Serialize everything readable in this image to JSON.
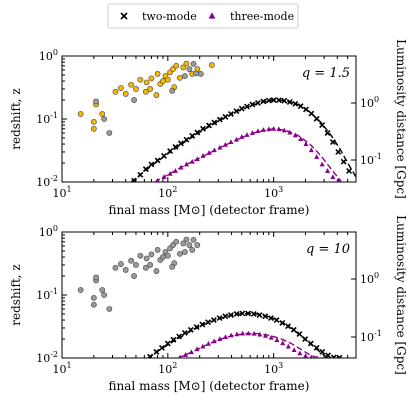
{
  "legend": {
    "items": [
      {
        "label": "two-mode",
        "marker": "x",
        "color": "#000000"
      },
      {
        "label": "three-mode",
        "marker": "triangle",
        "color": "#8b008b"
      }
    ]
  },
  "colors": {
    "gold": "#f5b800",
    "gray": "#9a9a9a",
    "two_mode": "#000000",
    "three_mode": "#8b008b"
  },
  "chart_data": [
    {
      "type": "scatter",
      "annotation": "q = 1.5",
      "xlabel": "final mass [M⊙] (detector frame)",
      "ylabel": "redshift, z",
      "y2label": "Luminosity distance [Gpc]",
      "xscale": "log",
      "yscale": "log",
      "xlim": [
        10,
        6000
      ],
      "ylim": [
        0.01,
        1.0
      ],
      "xticks": [
        "10",
        "100",
        "1000"
      ],
      "yticks": [
        "0.01",
        "0.1",
        "1"
      ],
      "y2ticks": [
        "0.1",
        "1"
      ],
      "catalog_events": [
        {
          "m": 63,
          "z": 0.38,
          "color": "gold"
        },
        {
          "m": 70,
          "z": 0.44,
          "color": "gold"
        },
        {
          "m": 80,
          "z": 0.52,
          "color": "gold"
        },
        {
          "m": 95,
          "z": 0.48,
          "color": "gold"
        },
        {
          "m": 105,
          "z": 0.55,
          "color": "gold"
        },
        {
          "m": 112,
          "z": 0.62,
          "color": "gold"
        },
        {
          "m": 120,
          "z": 0.7,
          "color": "gold"
        },
        {
          "m": 140,
          "z": 0.66,
          "color": "gold"
        },
        {
          "m": 150,
          "z": 0.76,
          "color": "gold"
        },
        {
          "m": 170,
          "z": 0.52,
          "color": "gold"
        },
        {
          "m": 190,
          "z": 0.62,
          "color": "gold"
        },
        {
          "m": 260,
          "z": 0.72,
          "color": "gold"
        },
        {
          "m": 24,
          "z": 0.12,
          "color": "gold"
        },
        {
          "m": 20,
          "z": 0.09,
          "color": "gold"
        },
        {
          "m": 15,
          "z": 0.12,
          "color": "gold"
        },
        {
          "m": 32,
          "z": 0.27,
          "color": "gold"
        },
        {
          "m": 36,
          "z": 0.31,
          "color": "gold"
        },
        {
          "m": 40,
          "z": 0.25,
          "color": "gold"
        },
        {
          "m": 45,
          "z": 0.35,
          "color": "gold"
        },
        {
          "m": 50,
          "z": 0.3,
          "color": "gold"
        },
        {
          "m": 55,
          "z": 0.42,
          "color": "gold"
        },
        {
          "m": 62,
          "z": 0.27,
          "color": "gold"
        },
        {
          "m": 68,
          "z": 0.3,
          "color": "gold"
        },
        {
          "m": 85,
          "z": 0.36,
          "color": "gold"
        },
        {
          "m": 90,
          "z": 0.4,
          "color": "gold"
        },
        {
          "m": 100,
          "z": 0.42,
          "color": "gold"
        },
        {
          "m": 78,
          "z": 0.24,
          "color": "gold"
        },
        {
          "m": 115,
          "z": 0.32,
          "color": "gold"
        },
        {
          "m": 130,
          "z": 0.45,
          "color": "gold"
        },
        {
          "m": 21,
          "z": 0.17,
          "color": "gold"
        },
        {
          "m": 20,
          "z": 0.07,
          "color": "gold"
        },
        {
          "m": 21,
          "z": 0.19,
          "color": "gray"
        },
        {
          "m": 25,
          "z": 0.1,
          "color": "gray"
        },
        {
          "m": 28,
          "z": 0.06,
          "color": "gray"
        },
        {
          "m": 48,
          "z": 0.2,
          "color": "gray"
        },
        {
          "m": 110,
          "z": 0.28,
          "color": "gray"
        },
        {
          "m": 145,
          "z": 0.48,
          "color": "gray"
        },
        {
          "m": 160,
          "z": 0.62,
          "color": "gray"
        },
        {
          "m": 175,
          "z": 0.75,
          "color": "gray"
        },
        {
          "m": 185,
          "z": 0.53,
          "color": "gray"
        },
        {
          "m": 205,
          "z": 0.52,
          "color": "gray"
        }
      ],
      "two_mode": {
        "x": [
          48,
          55,
          62,
          70,
          80,
          92,
          105,
          118,
          133,
          150,
          170,
          190,
          215,
          245,
          275,
          310,
          350,
          395,
          445,
          500,
          560,
          630,
          710,
          800,
          900,
          1000,
          1120,
          1260,
          1420,
          1600,
          1800,
          2020,
          2270,
          2550,
          2870,
          3230,
          3630,
          4080,
          4590,
          5160
        ],
        "y": [
          0.0105,
          0.013,
          0.016,
          0.019,
          0.022,
          0.026,
          0.031,
          0.036,
          0.041,
          0.047,
          0.054,
          0.061,
          0.07,
          0.079,
          0.088,
          0.098,
          0.108,
          0.12,
          0.133,
          0.146,
          0.158,
          0.17,
          0.18,
          0.19,
          0.196,
          0.2,
          0.199,
          0.195,
          0.186,
          0.174,
          0.16,
          0.142,
          0.122,
          0.101,
          0.08,
          0.06,
          0.043,
          0.03,
          0.021,
          0.015
        ]
      },
      "three_mode": {
        "x": [
          80,
          92,
          105,
          118,
          133,
          150,
          170,
          190,
          215,
          245,
          275,
          310,
          350,
          395,
          445,
          500,
          560,
          630,
          710,
          800,
          900,
          1000,
          1120,
          1260,
          1420,
          1600,
          1800,
          2020,
          2270,
          2550,
          2870,
          3230,
          3630,
          4080
        ],
        "y": [
          0.0105,
          0.012,
          0.0135,
          0.015,
          0.017,
          0.019,
          0.021,
          0.023,
          0.026,
          0.029,
          0.032,
          0.035,
          0.039,
          0.043,
          0.047,
          0.052,
          0.056,
          0.06,
          0.064,
          0.067,
          0.069,
          0.07,
          0.069,
          0.066,
          0.061,
          0.055,
          0.048,
          0.04,
          0.032,
          0.025,
          0.019,
          0.015,
          0.012,
          0.0105
        ]
      },
      "two_mode_fit": {
        "x": [
          45,
          70,
          100,
          150,
          220,
          320,
          450,
          600,
          800,
          1000,
          1300,
          1700,
          2200,
          2800,
          3500,
          4300,
          5200,
          6000
        ],
        "y": [
          0.01,
          0.018,
          0.028,
          0.045,
          0.068,
          0.098,
          0.132,
          0.162,
          0.188,
          0.2,
          0.195,
          0.17,
          0.13,
          0.088,
          0.055,
          0.032,
          0.018,
          0.012
        ]
      },
      "three_mode_fit": {
        "x": [
          75,
          100,
          150,
          220,
          320,
          450,
          600,
          800,
          1000,
          1300,
          1700,
          2200,
          2800,
          3500,
          4200,
          5000
        ],
        "y": [
          0.01,
          0.013,
          0.019,
          0.026,
          0.036,
          0.047,
          0.058,
          0.066,
          0.07,
          0.066,
          0.055,
          0.04,
          0.026,
          0.016,
          0.011,
          0.007
        ]
      }
    },
    {
      "type": "scatter",
      "annotation": "q = 10",
      "xlabel": "final mass [M⊙] (detector frame)",
      "ylabel": "redshift, z",
      "y2label": "Luminosity distance [Gpc]",
      "xscale": "log",
      "yscale": "log",
      "xlim": [
        10,
        6000
      ],
      "ylim": [
        0.01,
        1.0
      ],
      "xticks": [
        "10",
        "100",
        "1000"
      ],
      "yticks": [
        "0.01",
        "0.1",
        "1"
      ],
      "y2ticks": [
        "0.1",
        "1"
      ],
      "catalog_events": [
        {
          "m": 63,
          "z": 0.38,
          "color": "gray"
        },
        {
          "m": 70,
          "z": 0.44,
          "color": "gray"
        },
        {
          "m": 80,
          "z": 0.52,
          "color": "gray"
        },
        {
          "m": 95,
          "z": 0.48,
          "color": "gray"
        },
        {
          "m": 105,
          "z": 0.55,
          "color": "gray"
        },
        {
          "m": 112,
          "z": 0.62,
          "color": "gray"
        },
        {
          "m": 120,
          "z": 0.7,
          "color": "gray"
        },
        {
          "m": 140,
          "z": 0.66,
          "color": "gray"
        },
        {
          "m": 150,
          "z": 0.76,
          "color": "gray"
        },
        {
          "m": 170,
          "z": 0.52,
          "color": "gray"
        },
        {
          "m": 190,
          "z": 0.62,
          "color": "gray"
        },
        {
          "m": 24,
          "z": 0.12,
          "color": "gray"
        },
        {
          "m": 20,
          "z": 0.09,
          "color": "gray"
        },
        {
          "m": 15,
          "z": 0.12,
          "color": "gray"
        },
        {
          "m": 32,
          "z": 0.27,
          "color": "gray"
        },
        {
          "m": 36,
          "z": 0.31,
          "color": "gray"
        },
        {
          "m": 40,
          "z": 0.25,
          "color": "gray"
        },
        {
          "m": 45,
          "z": 0.35,
          "color": "gray"
        },
        {
          "m": 50,
          "z": 0.3,
          "color": "gray"
        },
        {
          "m": 55,
          "z": 0.42,
          "color": "gray"
        },
        {
          "m": 62,
          "z": 0.27,
          "color": "gray"
        },
        {
          "m": 68,
          "z": 0.3,
          "color": "gray"
        },
        {
          "m": 85,
          "z": 0.36,
          "color": "gray"
        },
        {
          "m": 90,
          "z": 0.4,
          "color": "gray"
        },
        {
          "m": 100,
          "z": 0.42,
          "color": "gray"
        },
        {
          "m": 78,
          "z": 0.24,
          "color": "gray"
        },
        {
          "m": 115,
          "z": 0.32,
          "color": "gray"
        },
        {
          "m": 130,
          "z": 0.45,
          "color": "gray"
        },
        {
          "m": 21,
          "z": 0.17,
          "color": "gray"
        },
        {
          "m": 20,
          "z": 0.07,
          "color": "gray"
        },
        {
          "m": 21,
          "z": 0.19,
          "color": "gray"
        },
        {
          "m": 25,
          "z": 0.1,
          "color": "gray"
        },
        {
          "m": 28,
          "z": 0.06,
          "color": "gray"
        },
        {
          "m": 48,
          "z": 0.2,
          "color": "gray"
        },
        {
          "m": 110,
          "z": 0.28,
          "color": "gray"
        },
        {
          "m": 145,
          "z": 0.48,
          "color": "gray"
        },
        {
          "m": 160,
          "z": 0.62,
          "color": "gray"
        },
        {
          "m": 175,
          "z": 0.75,
          "color": "gray"
        }
      ],
      "two_mode": {
        "x": [
          68,
          78,
          88,
          100,
          113,
          128,
          145,
          165,
          187,
          212,
          240,
          272,
          308,
          349,
          395,
          447,
          506,
          573,
          649,
          735,
          832,
          942,
          1066,
          1207,
          1367,
          1548,
          1753,
          1985,
          2248,
          2546,
          2883,
          3265,
          3697,
          4187
        ],
        "y": [
          0.0105,
          0.0125,
          0.0145,
          0.017,
          0.0195,
          0.022,
          0.025,
          0.028,
          0.031,
          0.034,
          0.037,
          0.04,
          0.043,
          0.046,
          0.048,
          0.05,
          0.051,
          0.051,
          0.05,
          0.048,
          0.046,
          0.043,
          0.04,
          0.036,
          0.032,
          0.028,
          0.024,
          0.02,
          0.017,
          0.0145,
          0.0125,
          0.011,
          0.0102,
          0.0101
        ]
      },
      "three_mode": {
        "x": [
          130,
          147,
          167,
          189,
          214,
          242,
          274,
          310,
          351,
          397,
          450,
          509,
          577,
          653,
          740,
          838,
          949,
          1075,
          1217,
          1378,
          1561,
          1768,
          2002,
          2267,
          2567
        ],
        "y": [
          0.0102,
          0.0112,
          0.0124,
          0.0138,
          0.0152,
          0.0168,
          0.0184,
          0.02,
          0.0215,
          0.0228,
          0.0238,
          0.0244,
          0.0246,
          0.0243,
          0.0236,
          0.0225,
          0.021,
          0.0192,
          0.0172,
          0.0152,
          0.0134,
          0.0119,
          0.0108,
          0.0102,
          0.01
        ]
      },
      "two_mode_fit": {
        "x": [
          65,
          90,
          120,
          160,
          210,
          280,
          370,
          480,
          600,
          750,
          950,
          1200,
          1500,
          1900,
          2400,
          3000,
          3700
        ],
        "y": [
          0.01,
          0.0145,
          0.0195,
          0.026,
          0.033,
          0.04,
          0.046,
          0.05,
          0.051,
          0.049,
          0.044,
          0.037,
          0.029,
          0.021,
          0.015,
          0.011,
          0.0095
        ]
      },
      "three_mode_fit": {
        "x": [
          125,
          170,
          230,
          310,
          410,
          540,
          700,
          900,
          1150,
          1450,
          1800,
          2200,
          2700
        ],
        "y": [
          0.01,
          0.0125,
          0.016,
          0.0198,
          0.0228,
          0.0244,
          0.0244,
          0.023,
          0.0205,
          0.0172,
          0.0138,
          0.0112,
          0.0098
        ]
      }
    }
  ]
}
